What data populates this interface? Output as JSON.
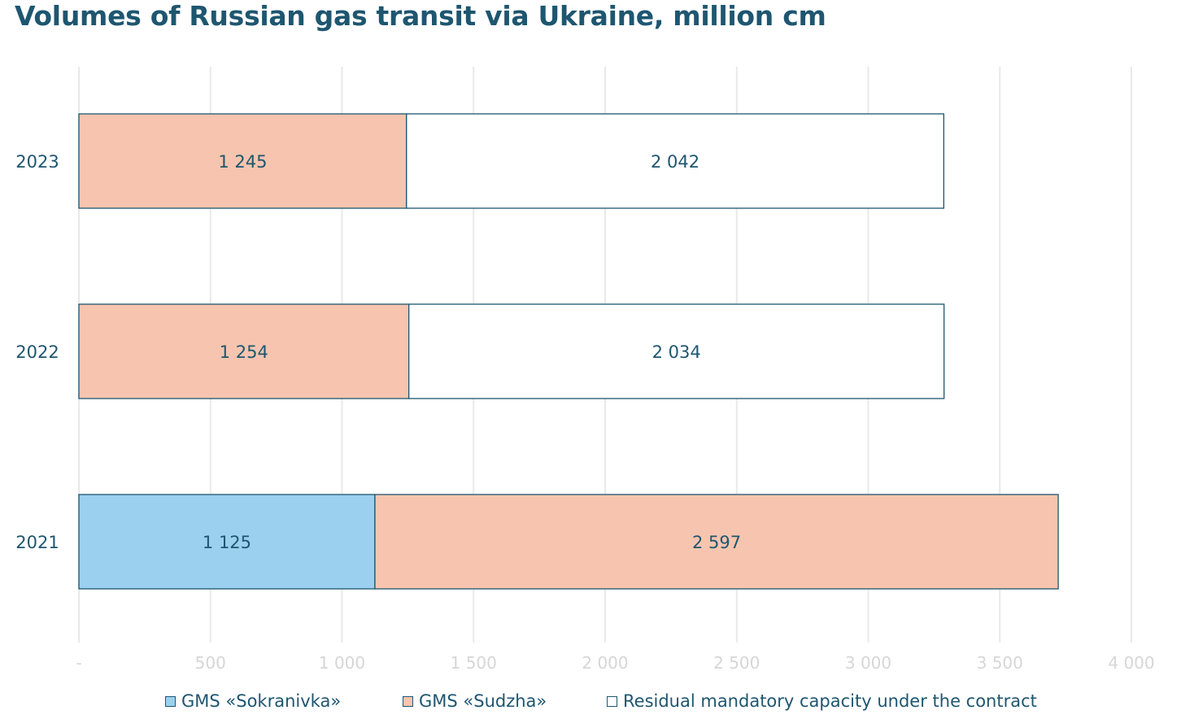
{
  "chart_data": {
    "type": "bar",
    "orientation": "horizontal",
    "stacked": true,
    "title": "Volumes of Russian gas transit via Ukraine, million cm",
    "categories": [
      "2023",
      "2022",
      "2021"
    ],
    "series": [
      {
        "name": "GMS «Sokranivka»",
        "values": [
          0,
          0,
          1125
        ],
        "labels": [
          "",
          "",
          "1 125"
        ],
        "color": "#9bd1ee"
      },
      {
        "name": "GMS «Sudzha»",
        "values": [
          1245,
          1254,
          2597
        ],
        "labels": [
          "1 245",
          "1 254",
          "2 597"
        ],
        "color": "#f7c5af"
      },
      {
        "name": "Residual mandatory capacity under the contract",
        "values": [
          2042,
          2034,
          0
        ],
        "labels": [
          "2 042",
          "2 034",
          ""
        ],
        "color": "#ffffff"
      }
    ],
    "xlim": [
      0,
      4000
    ],
    "xticks": [
      0,
      500,
      1000,
      1500,
      2000,
      2500,
      3000,
      3500,
      4000
    ],
    "xtick_labels": [
      "-",
      "500",
      "1 000",
      "1 500",
      "2 000",
      "2 500",
      "3 000",
      "3 500",
      "4 000"
    ],
    "grid": true,
    "legend_position": "bottom",
    "colors": {
      "title": "#1e5670",
      "text": "#1e5670",
      "bar_outline": "#1e5670",
      "grid": "#e9e9e9",
      "tick_label": "#d6d6d6"
    }
  }
}
